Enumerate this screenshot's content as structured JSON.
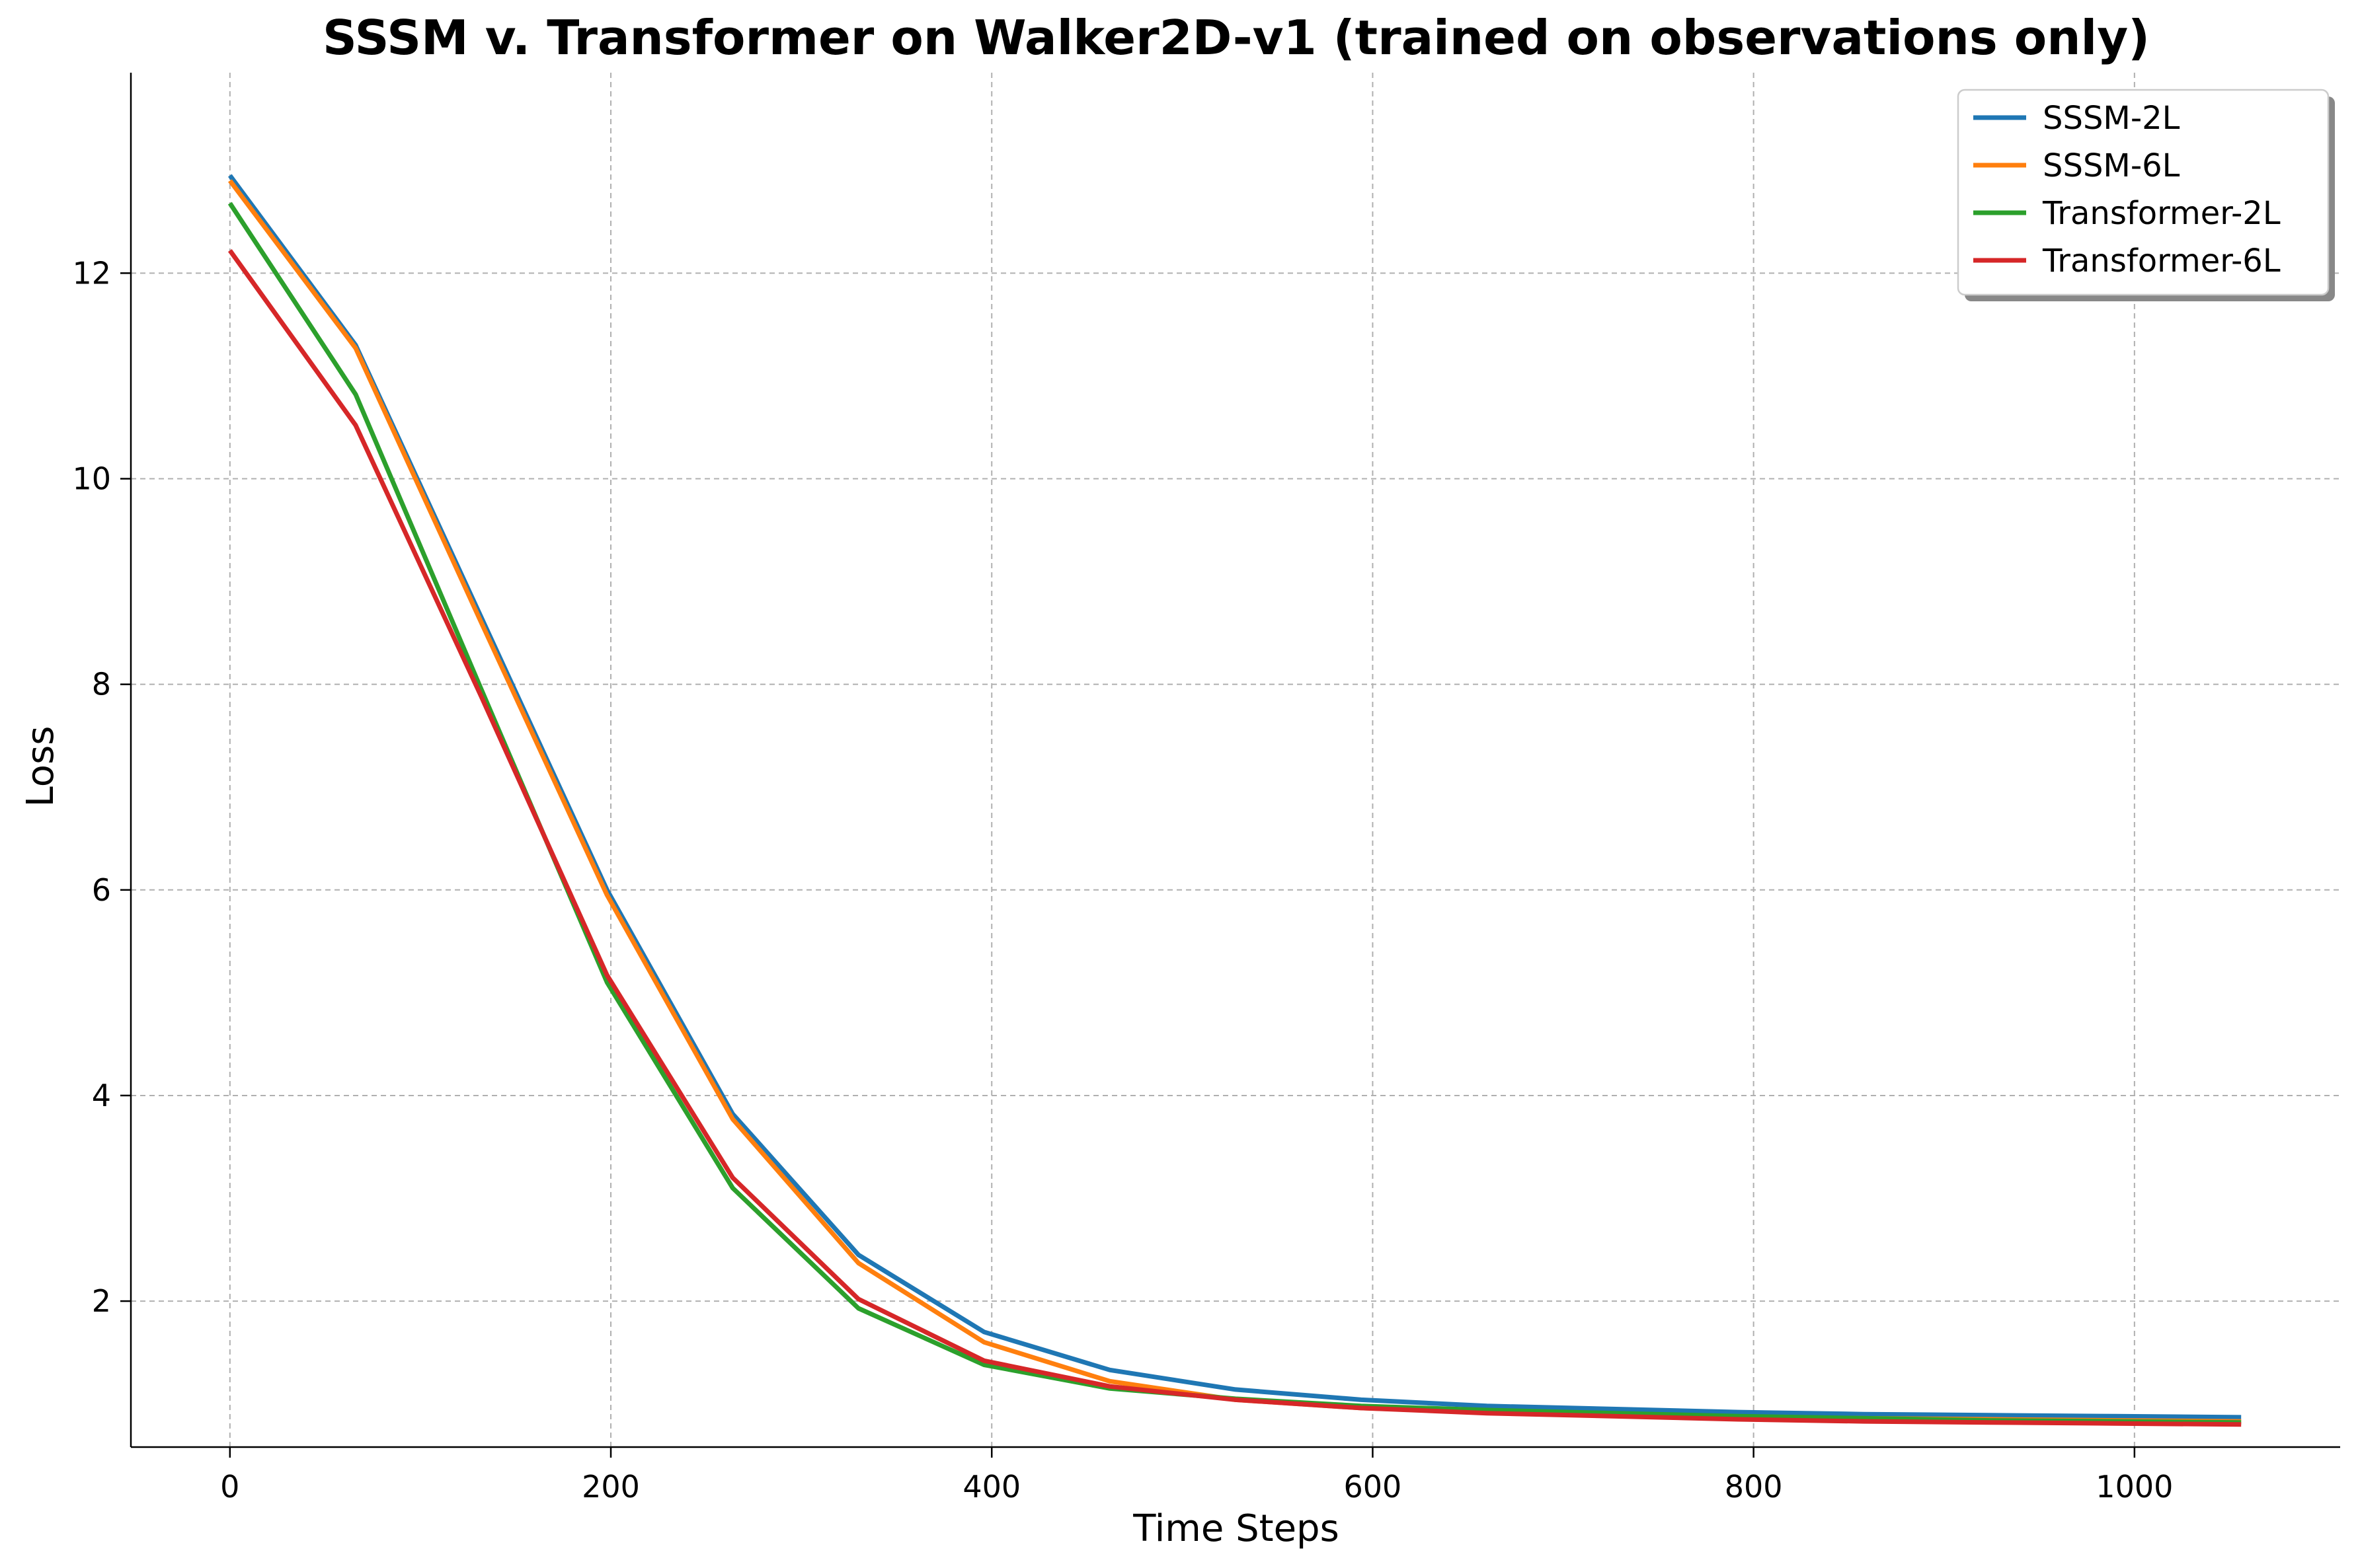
{
  "chart_data": {
    "type": "line",
    "title": "SSSM v. Transformer on Walker2D-v1 (trained on observations only)",
    "xlabel": "Time Steps",
    "ylabel": "Loss",
    "xlim": [
      -52,
      1108
    ],
    "ylim": [
      0.58,
      13.95
    ],
    "xticks": [
      0,
      200,
      400,
      600,
      800,
      1000
    ],
    "yticks": [
      2,
      4,
      6,
      8,
      10,
      12
    ],
    "grid": true,
    "legend_position": "top-right",
    "x": [
      0,
      66,
      132,
      198,
      264,
      330,
      396,
      462,
      528,
      594,
      660,
      726,
      792,
      858,
      924,
      990,
      1056
    ],
    "series": [
      {
        "name": "SSSM-2L",
        "color": "#1f77b4",
        "values": [
          12.95,
          11.3,
          8.65,
          6.0,
          3.82,
          2.45,
          1.7,
          1.33,
          1.14,
          1.04,
          0.98,
          0.95,
          0.92,
          0.9,
          0.89,
          0.88,
          0.87
        ]
      },
      {
        "name": "SSSM-6L",
        "color": "#ff7f0e",
        "values": [
          12.9,
          11.27,
          8.6,
          5.95,
          3.77,
          2.37,
          1.6,
          1.22,
          1.04,
          0.96,
          0.92,
          0.89,
          0.87,
          0.86,
          0.85,
          0.84,
          0.83
        ]
      },
      {
        "name": "Transformer-2L",
        "color": "#2ca02c",
        "values": [
          12.68,
          10.82,
          7.95,
          5.1,
          3.1,
          1.93,
          1.38,
          1.15,
          1.05,
          0.98,
          0.94,
          0.91,
          0.88,
          0.86,
          0.84,
          0.83,
          0.82
        ]
      },
      {
        "name": "Transformer-6L",
        "color": "#d62728",
        "values": [
          12.22,
          10.52,
          7.88,
          5.17,
          3.2,
          2.02,
          1.42,
          1.17,
          1.04,
          0.96,
          0.91,
          0.88,
          0.85,
          0.83,
          0.82,
          0.81,
          0.8
        ]
      }
    ]
  }
}
